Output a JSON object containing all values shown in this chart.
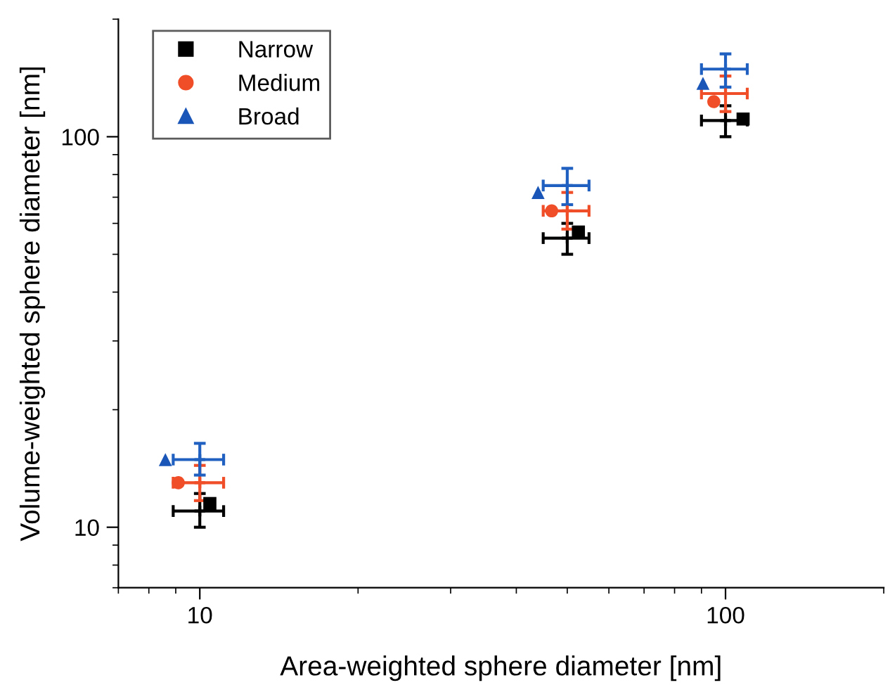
{
  "chart_data": {
    "type": "scatter",
    "xlabel": "Area-weighted sphere diameter [nm]",
    "ylabel": "Volume-weighted sphere diameter [nm]",
    "log": "xy",
    "xlim": [
      7,
      200
    ],
    "ylim": [
      7,
      200
    ],
    "xticks": [
      10,
      100
    ],
    "yticks": [
      10,
      100
    ],
    "grid": false,
    "legend": "top left",
    "series": [
      {
        "color": "#000000",
        "marker": "cross",
        "x": [
          10,
          50,
          100
        ],
        "values": [
          11,
          55,
          110
        ],
        "errors": [
          [
            10,
            12.2
          ],
          [
            50,
            60
          ],
          [
            100,
            120
          ]
        ],
        "xerrors": [
          [
            8.9,
            11.1
          ],
          [
            45,
            55
          ],
          [
            90,
            110
          ]
        ]
      },
      {
        "color": "#f04e28",
        "marker": "cross",
        "x": [
          10,
          50,
          100
        ],
        "values": [
          13,
          64.6,
          129
        ],
        "errors": [
          [
            11.7,
            14.4
          ],
          [
            58,
            72
          ],
          [
            116,
            143
          ]
        ],
        "xerrors": [
          [
            8.9,
            11.1
          ],
          [
            45,
            55
          ],
          [
            90,
            110
          ]
        ]
      },
      {
        "color": "#2060c0",
        "marker": "cross",
        "x": [
          10,
          50,
          100
        ],
        "values": [
          14.9,
          75,
          149
        ],
        "errors": [
          [
            13.6,
            16.4
          ],
          [
            67,
            83
          ],
          [
            134,
            163
          ]
        ],
        "xerrors": [
          [
            8.9,
            11.1
          ],
          [
            45,
            55
          ],
          [
            90,
            110
          ]
        ]
      },
      {
        "name": "Narrow",
        "color": "#000000",
        "marker": "square",
        "x": [
          10.45,
          52.5,
          108
        ],
        "values": [
          11.5,
          57,
          111
        ]
      },
      {
        "name": "Medium",
        "color": "#f04e28",
        "marker": "circle",
        "x": [
          9.1,
          46.7,
          95
        ],
        "values": [
          13,
          64.6,
          123
        ]
      },
      {
        "name": "Broad",
        "color": "#1a56b8",
        "marker": "triangle",
        "x": [
          8.6,
          44,
          90.6
        ],
        "values": [
          14.9,
          72,
          137
        ]
      }
    ]
  }
}
